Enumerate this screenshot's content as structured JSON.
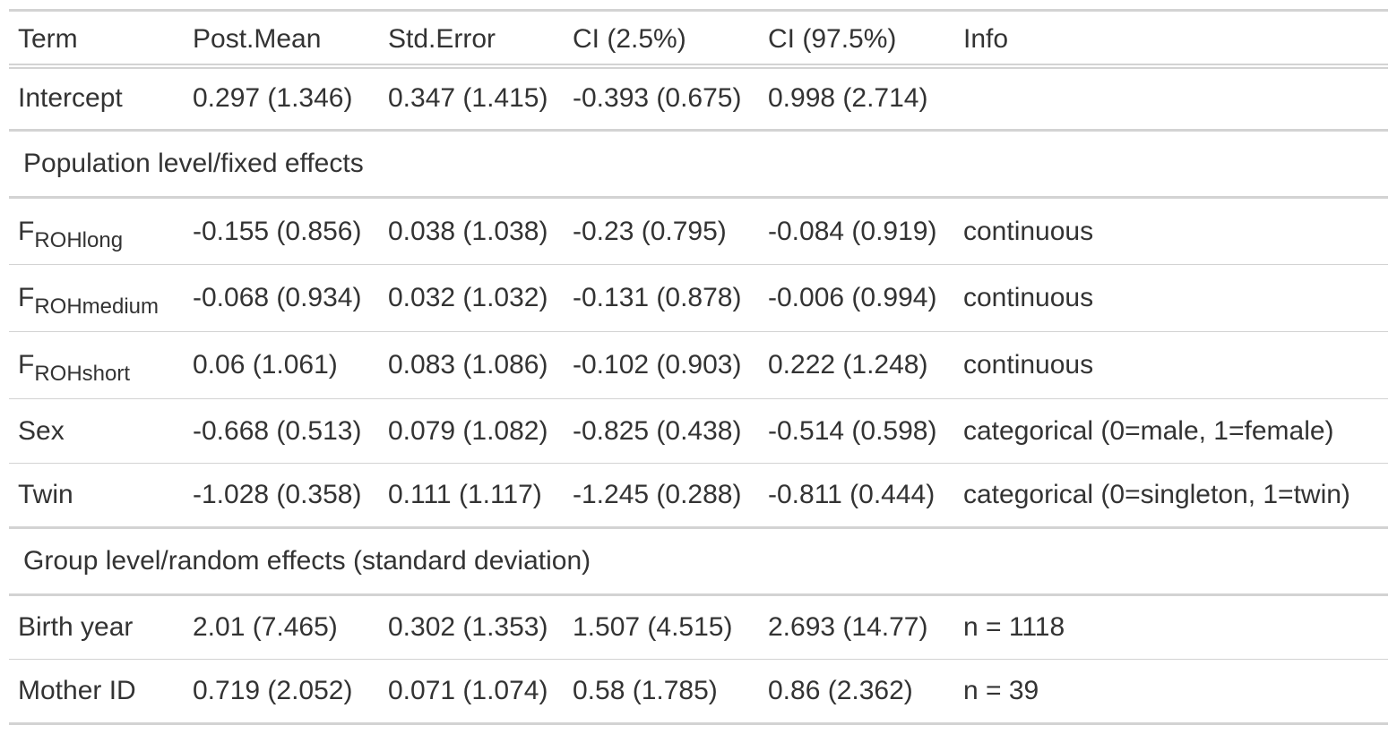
{
  "table": {
    "headers": [
      "Term",
      "Post.Mean",
      "Std.Error",
      "CI (2.5%)",
      "CI (97.5%)",
      "Info"
    ],
    "intercept": {
      "term": "Intercept",
      "post_mean": "0.297 (1.346)",
      "std_error": "0.347 (1.415)",
      "ci_low": "-0.393 (0.675)",
      "ci_high": "0.998 (2.714)",
      "info": ""
    },
    "fixed_group_label": "Population level/fixed effects",
    "fixed_rows": [
      {
        "term_main": "F",
        "term_sub": "ROHlong",
        "post_mean": "-0.155 (0.856)",
        "std_error": "0.038 (1.038)",
        "ci_low": "-0.23 (0.795)",
        "ci_high": "-0.084 (0.919)",
        "info": "continuous"
      },
      {
        "term_main": "F",
        "term_sub": "ROHmedium",
        "post_mean": "-0.068 (0.934)",
        "std_error": "0.032 (1.032)",
        "ci_low": "-0.131 (0.878)",
        "ci_high": "-0.006 (0.994)",
        "info": "continuous"
      },
      {
        "term_main": "F",
        "term_sub": "ROHshort",
        "post_mean": "0.06 (1.061)",
        "std_error": "0.083 (1.086)",
        "ci_low": "-0.102 (0.903)",
        "ci_high": "0.222 (1.248)",
        "info": "continuous"
      },
      {
        "term_main": "Sex",
        "term_sub": "",
        "post_mean": "-0.668 (0.513)",
        "std_error": "0.079 (1.082)",
        "ci_low": "-0.825 (0.438)",
        "ci_high": "-0.514 (0.598)",
        "info": "categorical (0=male, 1=female)"
      },
      {
        "term_main": "Twin",
        "term_sub": "",
        "post_mean": "-1.028 (0.358)",
        "std_error": "0.111 (1.117)",
        "ci_low": "-1.245 (0.288)",
        "ci_high": "-0.811 (0.444)",
        "info": "categorical (0=singleton, 1=twin)"
      }
    ],
    "random_group_label": "Group level/random effects (standard deviation)",
    "random_rows": [
      {
        "term": "Birth year",
        "post_mean": "2.01 (7.465)",
        "std_error": "0.302 (1.353)",
        "ci_low": "1.507 (4.515)",
        "ci_high": "2.693 (14.77)",
        "info": "n = 1118"
      },
      {
        "term": "Mother ID",
        "post_mean": "0.719 (2.052)",
        "std_error": "0.071 (1.074)",
        "ci_low": "0.58 (1.785)",
        "ci_high": "0.86 (2.362)",
        "info": "n = 39"
      }
    ]
  },
  "colors": {
    "text": "#333333",
    "rule": "#d3d3d3",
    "background": "#ffffff"
  }
}
